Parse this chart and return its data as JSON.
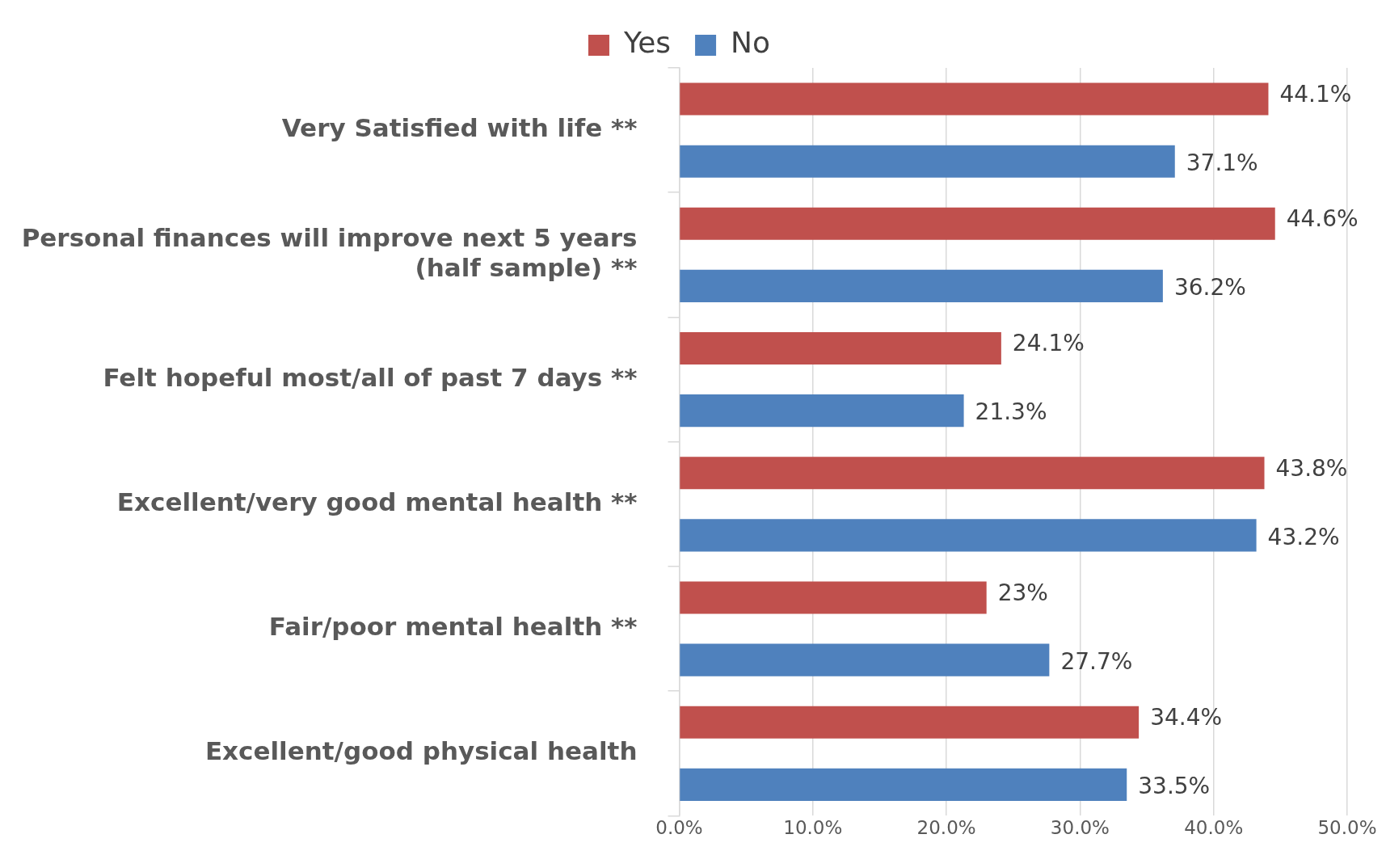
{
  "chart_data": {
    "type": "bar",
    "orientation": "horizontal",
    "categories": [
      "Very Satisfied with life **",
      "Personal finances will improve next 5 years (half sample) **",
      "Felt hopeful most/all of past 7 days **",
      "Excellent/very good mental health **",
      "Fair/poor mental health **",
      "Excellent/good physical health"
    ],
    "series": [
      {
        "name": "Yes",
        "color": "#c0504d",
        "values": [
          44.1,
          44.6,
          24.1,
          43.8,
          23,
          34.4
        ],
        "value_labels": [
          "44.1%",
          "44.6%",
          "24.1%",
          "43.8%",
          "23%",
          "34.4%"
        ]
      },
      {
        "name": "No",
        "color": "#4f81bd",
        "values": [
          37.1,
          36.2,
          21.3,
          43.2,
          27.7,
          33.5
        ],
        "value_labels": [
          "37.1%",
          "36.2%",
          "21.3%",
          "43.2%",
          "27.7%",
          "33.5%"
        ]
      }
    ],
    "xlim": [
      0,
      50
    ],
    "xticks": [
      {
        "value": 0,
        "label": "0.0%"
      },
      {
        "value": 10,
        "label": "10.0%"
      },
      {
        "value": 20,
        "label": "20.0%"
      },
      {
        "value": 30,
        "label": "30.0%"
      },
      {
        "value": 40,
        "label": "40.0%"
      },
      {
        "value": 50,
        "label": "50.0%"
      }
    ],
    "grid": "x",
    "legend": "top"
  }
}
